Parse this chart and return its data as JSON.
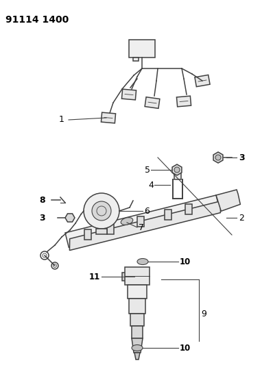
{
  "title": "91114 1400",
  "background_color": "#ffffff",
  "line_color": "#404040",
  "label_color": "#000000",
  "fig_width": 3.98,
  "fig_height": 5.33,
  "dpi": 100
}
